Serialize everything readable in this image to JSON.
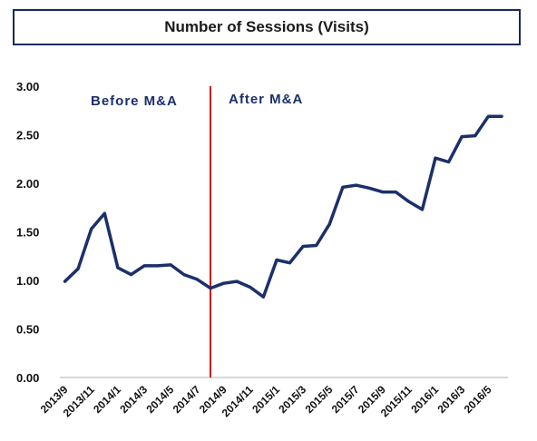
{
  "chart_data": {
    "type": "line",
    "title": "Number of Sessions (Visits)",
    "x": [
      "2013/9",
      "2013/10",
      "2013/11",
      "2013/12",
      "2014/1",
      "2014/2",
      "2014/3",
      "2014/4",
      "2014/5",
      "2014/6",
      "2014/7",
      "2014/8",
      "2014/9",
      "2014/10",
      "2014/11",
      "2014/12",
      "2015/1",
      "2015/2",
      "2015/3",
      "2015/4",
      "2015/5",
      "2015/6",
      "2015/7",
      "2015/8",
      "2015/9",
      "2015/10",
      "2015/11",
      "2015/12",
      "2016/1",
      "2016/2",
      "2016/3",
      "2016/4",
      "2016/5",
      "2016/6"
    ],
    "x_tick_labels": [
      "2013/9",
      "2013/11",
      "2014/1",
      "2014/3",
      "2014/5",
      "2014/7",
      "2014/9",
      "2014/11",
      "2015/1",
      "2015/3",
      "2015/5",
      "2015/7",
      "2015/9",
      "2015/11",
      "2016/1",
      "2016/3",
      "2016/5"
    ],
    "series": [
      {
        "values": [
          0.99,
          1.12,
          1.53,
          1.69,
          1.13,
          1.06,
          1.15,
          1.15,
          1.16,
          1.06,
          1.01,
          0.92,
          0.97,
          0.99,
          0.93,
          0.83,
          1.21,
          1.18,
          1.35,
          1.36,
          1.58,
          1.96,
          1.98,
          1.95,
          1.91,
          1.91,
          1.81,
          1.73,
          2.26,
          2.22,
          2.48,
          2.49,
          2.69,
          2.69
        ],
        "color": "#1b2f6b"
      }
    ],
    "ylim": [
      0,
      3.0
    ],
    "y_ticks": [
      "0.00",
      "0.50",
      "1.00",
      "1.50",
      "2.00",
      "2.50",
      "3.00"
    ],
    "y_tick_values": [
      0,
      0.5,
      1.0,
      1.5,
      2.0,
      2.5,
      3.0
    ],
    "divider": {
      "x": "2014/8",
      "color": "#cc1a1a"
    },
    "annotations": {
      "before": "Before M&A",
      "after": "After M&A"
    },
    "grid": false,
    "legend": "none"
  }
}
